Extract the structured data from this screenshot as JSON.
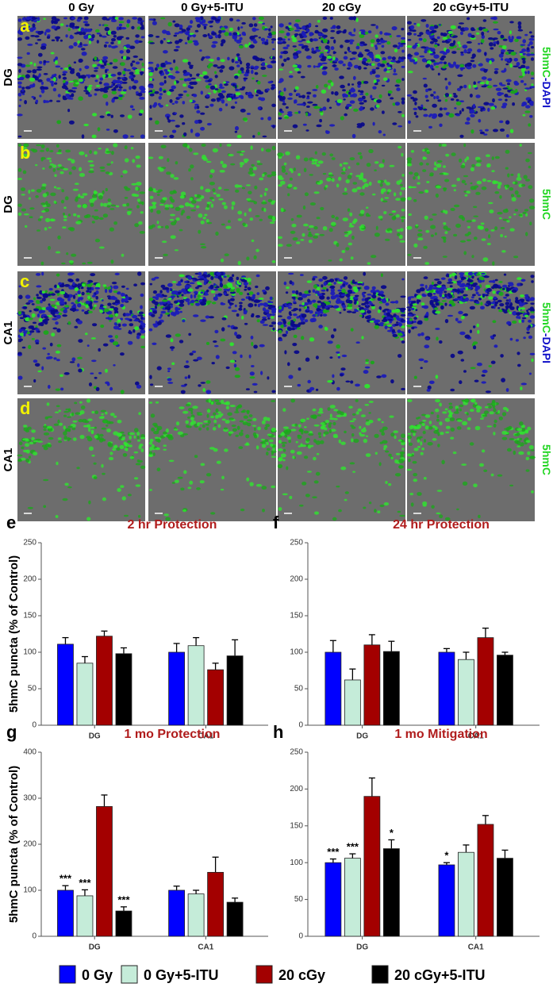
{
  "figure": {
    "column_headers": [
      "0 Gy",
      "0 Gy+5-ITU",
      "20 cGy",
      "20 cGy+5-ITU"
    ],
    "rows": [
      {
        "letter": "a",
        "region": "DG",
        "stain": [
          "5hmC",
          "-DAPI"
        ]
      },
      {
        "letter": "b",
        "region": "DG",
        "stain": [
          "5hmC"
        ]
      },
      {
        "letter": "c",
        "region": "CA1",
        "stain": [
          "5hmC",
          "-DAPI"
        ]
      },
      {
        "letter": "d",
        "region": "CA1",
        "stain": [
          "5hmC"
        ]
      }
    ]
  },
  "chart_data": [
    {
      "type": "bar",
      "label": "e",
      "title": "2 hr Protection",
      "y_label": "5hmC puncta (% of Control)",
      "categories": [
        "DG",
        "CA1"
      ],
      "ylim": [
        0,
        250
      ],
      "yticks": [
        0,
        50,
        100,
        150,
        200,
        250
      ],
      "series": [
        {
          "name": "0 Gy",
          "color": "#0000ff",
          "values": [
            111,
            100
          ],
          "errors": [
            9,
            12
          ]
        },
        {
          "name": "0 Gy+5-ITU",
          "color": "#c5ecd9",
          "values": [
            85,
            109
          ],
          "errors": [
            9,
            11
          ]
        },
        {
          "name": "20 cGy",
          "color": "#a30000",
          "values": [
            122,
            76
          ],
          "errors": [
            7,
            9
          ]
        },
        {
          "name": "20 cGy+5-ITU",
          "color": "#000000",
          "values": [
            98,
            95
          ],
          "errors": [
            8,
            22
          ]
        }
      ]
    },
    {
      "type": "bar",
      "label": "f",
      "title": "24 hr Protection",
      "categories": [
        "DG",
        "CA1"
      ],
      "ylim": [
        0,
        250
      ],
      "yticks": [
        0,
        50,
        100,
        150,
        200,
        250
      ],
      "series": [
        {
          "name": "0 Gy",
          "color": "#0000ff",
          "values": [
            100,
            100
          ],
          "errors": [
            16,
            5
          ]
        },
        {
          "name": "0 Gy+5-ITU",
          "color": "#c5ecd9",
          "values": [
            62,
            90
          ],
          "errors": [
            15,
            10
          ]
        },
        {
          "name": "20 cGy",
          "color": "#a30000",
          "values": [
            110,
            120
          ],
          "errors": [
            14,
            13
          ]
        },
        {
          "name": "20 cGy+5-ITU",
          "color": "#000000",
          "values": [
            101,
            96
          ],
          "errors": [
            14,
            4
          ]
        }
      ]
    },
    {
      "type": "bar",
      "label": "g",
      "title": "1 mo Protection",
      "y_label": "5hmC puncta (% of Control)",
      "categories": [
        "DG",
        "CA1"
      ],
      "ylim": [
        0,
        400
      ],
      "yticks": [
        0,
        100,
        200,
        300,
        400
      ],
      "series": [
        {
          "name": "0 Gy",
          "color": "#0000ff",
          "values": [
            100,
            100
          ],
          "errors": [
            10,
            9
          ],
          "significance": [
            "***",
            null
          ]
        },
        {
          "name": "0 Gy+5-ITU",
          "color": "#c5ecd9",
          "values": [
            88,
            92
          ],
          "errors": [
            13,
            8
          ],
          "significance": [
            "***",
            null
          ]
        },
        {
          "name": "20 cGy",
          "color": "#a30000",
          "values": [
            282,
            139
          ],
          "errors": [
            25,
            33
          ]
        },
        {
          "name": "20 cGy+5-ITU",
          "color": "#000000",
          "values": [
            55,
            74
          ],
          "errors": [
            9,
            9
          ],
          "significance": [
            "***",
            null
          ]
        }
      ]
    },
    {
      "type": "bar",
      "label": "h",
      "title": "1 mo Mitigation",
      "categories": [
        "DG",
        "CA1"
      ],
      "ylim": [
        0,
        250
      ],
      "yticks": [
        0,
        50,
        100,
        150,
        200,
        250
      ],
      "series": [
        {
          "name": "0 Gy",
          "color": "#0000ff",
          "values": [
            100,
            97
          ],
          "errors": [
            5,
            3
          ],
          "significance": [
            "***",
            "*"
          ]
        },
        {
          "name": "0 Gy+5-ITU",
          "color": "#c5ecd9",
          "values": [
            106,
            114
          ],
          "errors": [
            6,
            10
          ],
          "significance": [
            "***",
            null
          ]
        },
        {
          "name": "20 cGy",
          "color": "#a30000",
          "values": [
            190,
            152
          ],
          "errors": [
            25,
            12
          ]
        },
        {
          "name": "20 cGy+5-ITU",
          "color": "#000000",
          "values": [
            119,
            106
          ],
          "errors": [
            12,
            11
          ],
          "significance": [
            "*",
            null
          ]
        }
      ]
    }
  ]
}
